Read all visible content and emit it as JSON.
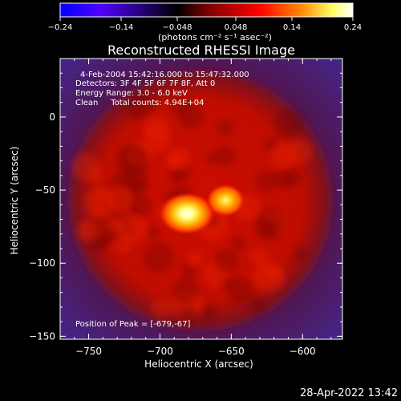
{
  "chart_data": {
    "type": "heatmap",
    "title": "Reconstructed RHESSI Image",
    "xlabel": "Heliocentric X (arcsec)",
    "ylabel": "Heliocentric Y (arcsec)",
    "xlim": [
      -770,
      -572
    ],
    "ylim": [
      -152,
      40
    ],
    "x_ticks": [
      -750,
      -700,
      -650,
      -600
    ],
    "x_tick_labels": [
      "−750",
      "−700",
      "−650",
      "−600"
    ],
    "y_ticks": [
      0,
      -50,
      -100,
      -150
    ],
    "y_tick_labels": [
      "0",
      "−50",
      "−100",
      "−150"
    ],
    "colorbar": {
      "min": -0.24,
      "max": 0.24,
      "ticks": [
        -0.24,
        -0.14,
        -0.048,
        0.048,
        0.14,
        0.24
      ],
      "tick_labels": [
        "−0.24",
        "−0.14",
        "−0.048",
        "0.048",
        "0.14",
        "0.24"
      ],
      "unit_label": "(photons cm⁻² s⁻¹ asec⁻²)",
      "colormap": [
        "#0000ff",
        "#5000ff",
        "#000000",
        "#7a0000",
        "#ff0000",
        "#ff8800",
        "#ffff66",
        "#ffffff"
      ]
    },
    "annotations": [
      "4-Feb-2004 15:42:16.000 to 15:47:32.000",
      "Detectors: 3F 4F 5F 6F 7F 8F, Att 0",
      "Energy Range: 3.0 - 6.0 keV",
      "Clean     Total counts: 4.94E+04",
      "Position of Peak = [-679,-67]"
    ],
    "sources": [
      {
        "x": -681,
        "y": -66,
        "peak": 0.24
      },
      {
        "x": -654,
        "y": -57,
        "peak": 0.17
      }
    ],
    "background_level": 0.07
  },
  "footer": {
    "timestamp": "28-Apr-2022 13:42"
  }
}
